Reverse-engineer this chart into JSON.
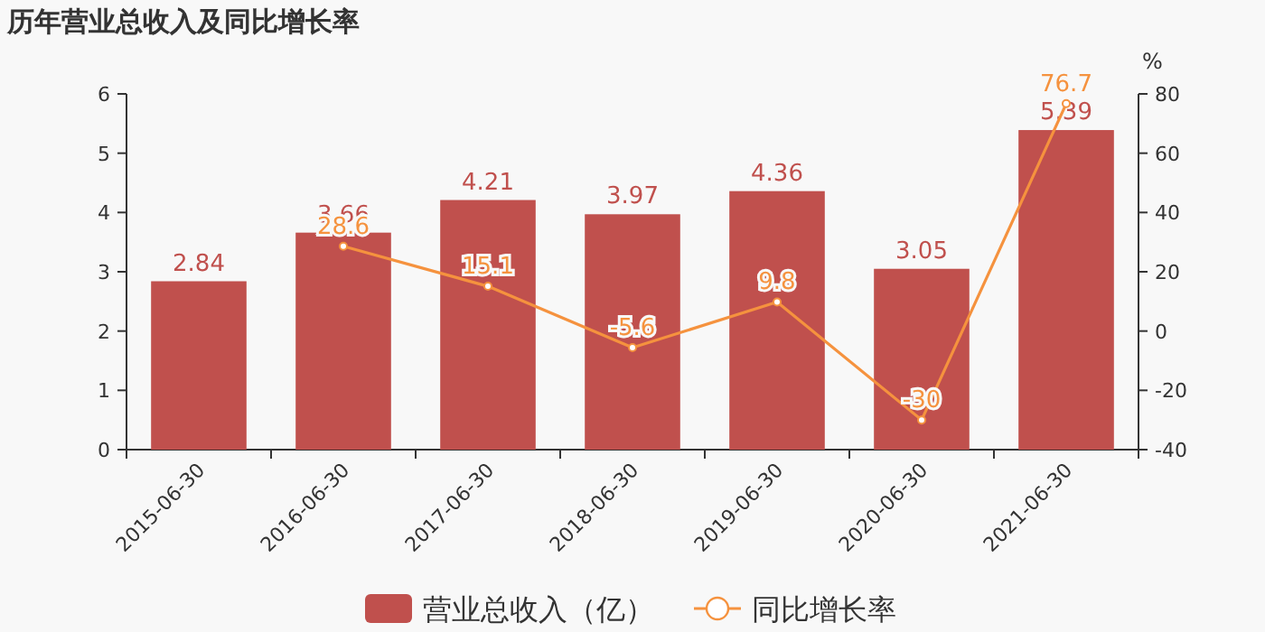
{
  "chart_data": {
    "type": "bar",
    "title": "历年营业总收入及同比增长率",
    "y2label": "%",
    "categories": [
      "2015-06-30",
      "2016-06-30",
      "2017-06-30",
      "2018-06-30",
      "2019-06-30",
      "2020-06-30",
      "2021-06-30"
    ],
    "series": [
      {
        "name": "营业总收入（亿）",
        "color": "#c0504d",
        "values": [
          2.84,
          3.66,
          4.21,
          3.97,
          4.36,
          3.05,
          5.39
        ]
      },
      {
        "name": "同比增长率",
        "type": "line",
        "axis": "y2",
        "color": "#f5923e",
        "marker": "circle",
        "values": [
          null,
          28.6,
          15.1,
          -5.6,
          9.8,
          -30,
          76.7
        ]
      }
    ],
    "ylim": [
      0,
      6
    ],
    "yticks": [
      0,
      1,
      2,
      3,
      4,
      5,
      6
    ],
    "y2lim": [
      -40,
      80
    ],
    "y2ticks": [
      -40,
      -20,
      0,
      20,
      40,
      60,
      80
    ],
    "data_labels": true,
    "legend": "bottom"
  }
}
